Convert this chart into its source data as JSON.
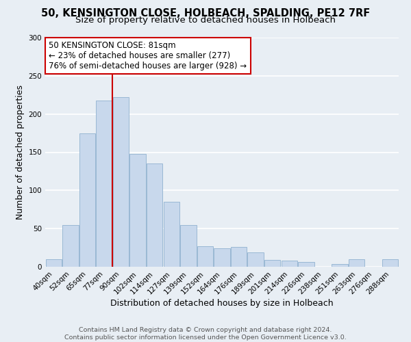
{
  "title": "50, KENSINGTON CLOSE, HOLBEACH, SPALDING, PE12 7RF",
  "subtitle": "Size of property relative to detached houses in Holbeach",
  "xlabel": "Distribution of detached houses by size in Holbeach",
  "ylabel": "Number of detached properties",
  "bar_labels": [
    "40sqm",
    "52sqm",
    "65sqm",
    "77sqm",
    "90sqm",
    "102sqm",
    "114sqm",
    "127sqm",
    "139sqm",
    "152sqm",
    "164sqm",
    "176sqm",
    "189sqm",
    "201sqm",
    "214sqm",
    "226sqm",
    "238sqm",
    "251sqm",
    "263sqm",
    "276sqm",
    "288sqm"
  ],
  "bar_values": [
    10,
    55,
    175,
    218,
    222,
    148,
    135,
    85,
    55,
    27,
    24,
    26,
    19,
    9,
    8,
    6,
    0,
    4,
    10,
    0,
    10
  ],
  "bar_color": "#c8d8ec",
  "bar_edge_color": "#9ab8d4",
  "reference_line_label": "50 KENSINGTON CLOSE: 81sqm",
  "annotation_line1": "← 23% of detached houses are smaller (277)",
  "annotation_line2": "76% of semi-detached houses are larger (928) →",
  "annotation_box_color": "#ffffff",
  "annotation_box_edge_color": "#cc0000",
  "ref_line_color": "#cc0000",
  "ref_line_x": 3.5,
  "ylim": [
    0,
    300
  ],
  "yticks": [
    0,
    50,
    100,
    150,
    200,
    250,
    300
  ],
  "footer_line1": "Contains HM Land Registry data © Crown copyright and database right 2024.",
  "footer_line2": "Contains public sector information licensed under the Open Government Licence v3.0.",
  "background_color": "#e8eef4",
  "grid_color": "#ffffff",
  "title_fontsize": 10.5,
  "subtitle_fontsize": 9.5,
  "axis_label_fontsize": 9,
  "tick_fontsize": 7.5,
  "footer_fontsize": 6.8,
  "annotation_fontsize": 8.5
}
